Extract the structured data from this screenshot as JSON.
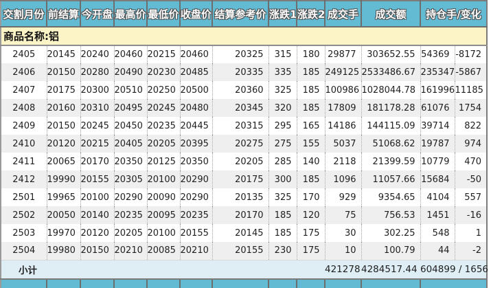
{
  "table": {
    "headers": [
      "交割月份",
      "前结算",
      "今开盘",
      "最高价",
      "最低价",
      "收盘价",
      "结算参考价",
      "涨跌1",
      "涨跌2",
      "成交手",
      "成交额",
      "持仓手/变化"
    ],
    "commodity_label": "商品名称:铝",
    "rows": [
      [
        "2405",
        "20145",
        "20240",
        "20460",
        "20215",
        "20460",
        "20325",
        "315",
        "180",
        "29877",
        "303652.55",
        "54369",
        "-8172"
      ],
      [
        "2406",
        "20150",
        "20280",
        "20490",
        "20230",
        "20485",
        "20335",
        "335",
        "185",
        "249125",
        "2533486.67",
        "235347",
        "-5867"
      ],
      [
        "2407",
        "20175",
        "20300",
        "20510",
        "20250",
        "20500",
        "20360",
        "325",
        "185",
        "100986",
        "1028044.78",
        "161996",
        "11185"
      ],
      [
        "2408",
        "20160",
        "20310",
        "20495",
        "20245",
        "20480",
        "20345",
        "320",
        "185",
        "17809",
        "181178.28",
        "61076",
        "1754"
      ],
      [
        "2409",
        "20150",
        "20245",
        "20450",
        "20235",
        "20445",
        "20315",
        "295",
        "165",
        "14186",
        "144115.09",
        "39714",
        "822"
      ],
      [
        "2410",
        "20120",
        "20215",
        "20405",
        "20205",
        "20395",
        "20275",
        "275",
        "155",
        "5037",
        "51068.62",
        "19787",
        "974"
      ],
      [
        "2411",
        "20065",
        "20170",
        "20350",
        "20125",
        "20350",
        "20205",
        "285",
        "140",
        "2118",
        "21399.59",
        "10779",
        "470"
      ],
      [
        "2412",
        "19990",
        "20155",
        "20305",
        "20100",
        "20290",
        "20175",
        "300",
        "185",
        "1096",
        "11057.66",
        "15684",
        "-50"
      ],
      [
        "2501",
        "19965",
        "20100",
        "20290",
        "20090",
        "20290",
        "20135",
        "325",
        "170",
        "929",
        "9354.65",
        "4104",
        "557"
      ],
      [
        "2502",
        "20050",
        "20140",
        "20235",
        "20095",
        "20235",
        "20170",
        "185",
        "120",
        "75",
        "756.53",
        "1451",
        "-16"
      ],
      [
        "2503",
        "19970",
        "20120",
        "20205",
        "20100",
        "20155",
        "20145",
        "185",
        "175",
        "30",
        "302.25",
        "548",
        "1"
      ],
      [
        "2504",
        "19980",
        "20150",
        "20210",
        "20085",
        "20210",
        "20155",
        "230",
        "175",
        "10",
        "100.79",
        "44",
        "-2"
      ]
    ],
    "subtotal": {
      "label": "小计",
      "volume": "421278",
      "turnover": "4284517.44",
      "open_interest_change": "604899 / 1656"
    }
  },
  "colors": {
    "header_teal": "#62bbd3",
    "commodity_band_yellow": "#fcf4c6",
    "subtotal_blue": "#dfeef5",
    "row_alt_gray": "#efefef",
    "border_dark": "#6d6d6d"
  }
}
